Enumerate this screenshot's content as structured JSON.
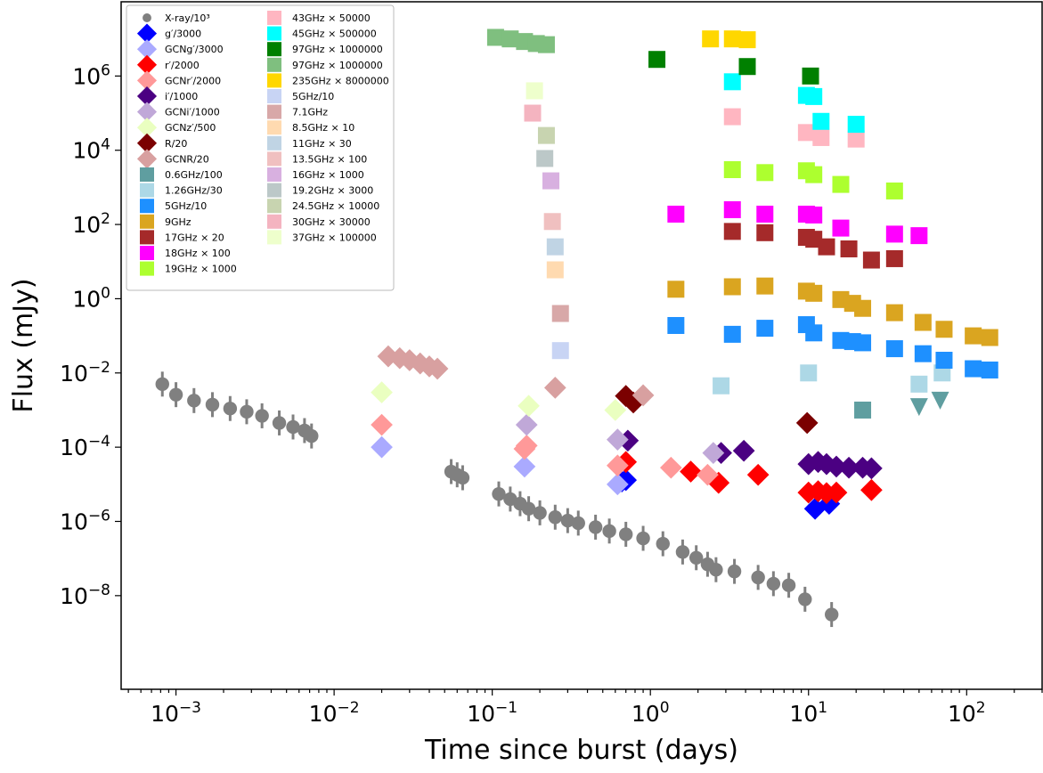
{
  "chart_data": {
    "type": "scatter",
    "xlabel": "Time since burst (days)",
    "ylabel": "Flux (mJy)",
    "xscale": "log",
    "yscale": "log",
    "xlim": [
      0.00045,
      300
    ],
    "ylim": [
      3e-11,
      100000000.0
    ],
    "x_ticks": [
      {
        "value": 0.001,
        "base": "10",
        "exp": "−3"
      },
      {
        "value": 0.01,
        "base": "10",
        "exp": "−2"
      },
      {
        "value": 0.1,
        "base": "10",
        "exp": "−1"
      },
      {
        "value": 1,
        "base": "10",
        "exp": "0"
      },
      {
        "value": 10,
        "base": "10",
        "exp": "1"
      },
      {
        "value": 100,
        "base": "10",
        "exp": "2"
      }
    ],
    "y_ticks": [
      {
        "value": 1e-08,
        "base": "10",
        "exp": "−8"
      },
      {
        "value": 1e-06,
        "base": "10",
        "exp": "−6"
      },
      {
        "value": 0.0001,
        "base": "10",
        "exp": "−4"
      },
      {
        "value": 0.01,
        "base": "10",
        "exp": "−2"
      },
      {
        "value": 1,
        "base": "10",
        "exp": "0"
      },
      {
        "value": 100,
        "base": "10",
        "exp": "2"
      },
      {
        "value": 10000,
        "base": "10",
        "exp": "4"
      },
      {
        "value": 1000000,
        "base": "10",
        "exp": "6"
      }
    ],
    "legend_position": "top-left",
    "series": [
      {
        "name": "X-ray/10³",
        "color": "#808080",
        "marker": "circle",
        "points": [
          [
            0.00082,
            0.005
          ],
          [
            0.001,
            0.0026
          ],
          [
            0.0013,
            0.0018
          ],
          [
            0.0017,
            0.0014
          ],
          [
            0.0022,
            0.0011
          ],
          [
            0.0028,
            0.0009
          ],
          [
            0.0035,
            0.0007
          ],
          [
            0.0045,
            0.00045
          ],
          [
            0.0055,
            0.00035
          ],
          [
            0.0065,
            0.00028
          ],
          [
            0.0072,
            0.0002
          ],
          [
            0.055,
            2.2e-05
          ],
          [
            0.06,
            1.8e-05
          ],
          [
            0.065,
            1.5e-05
          ],
          [
            0.11,
            5.5e-06
          ],
          [
            0.13,
            4e-06
          ],
          [
            0.15,
            3e-06
          ],
          [
            0.17,
            2.2e-06
          ],
          [
            0.2,
            1.7e-06
          ],
          [
            0.25,
            1.3e-06
          ],
          [
            0.3,
            1.05e-06
          ],
          [
            0.35,
            9e-07
          ],
          [
            0.45,
            7e-07
          ],
          [
            0.55,
            5.5e-07
          ],
          [
            0.7,
            4.5e-07
          ],
          [
            0.9,
            3.5e-07
          ],
          [
            1.2,
            2.5e-07
          ],
          [
            1.6,
            1.5e-07
          ],
          [
            1.95,
            1.05e-07
          ],
          [
            2.3,
            7e-08
          ],
          [
            2.6,
            5e-08
          ],
          [
            3.4,
            4.5e-08
          ],
          [
            4.8,
            3.1e-08
          ],
          [
            6.0,
            2.1e-08
          ],
          [
            7.5,
            1.9e-08
          ],
          [
            9.5,
            8e-09
          ],
          [
            14,
            3.1e-09
          ]
        ]
      },
      {
        "name": "g′/3000",
        "color": "#0000ff",
        "marker": "diamond",
        "points": [
          [
            0.7,
            1.3e-05
          ],
          [
            0.66,
            1.2e-05
          ],
          [
            11,
            2.2e-06
          ],
          [
            13.5,
            3e-06
          ]
        ]
      },
      {
        "name": "GCNg′/3000",
        "color": "#aaaaff",
        "marker": "diamond",
        "points": [
          [
            0.02,
            0.0001
          ],
          [
            0.16,
            3e-05
          ],
          [
            0.62,
            1e-05
          ]
        ]
      },
      {
        "name": "r′/2000",
        "color": "#ff0000",
        "marker": "diamond",
        "points": [
          [
            0.7,
            4e-05
          ],
          [
            1.8,
            2.2e-05
          ],
          [
            2.7,
            1.1e-05
          ],
          [
            4.8,
            1.8e-05
          ],
          [
            10,
            6e-06
          ],
          [
            11.5,
            6.5e-06
          ],
          [
            13,
            5.8e-06
          ],
          [
            15,
            6e-06
          ],
          [
            25,
            7e-06
          ]
        ]
      },
      {
        "name": "GCNr′/2000",
        "color": "#ff9999",
        "marker": "diamond",
        "points": [
          [
            0.02,
            0.0004
          ],
          [
            0.16,
            9e-05
          ],
          [
            0.165,
            0.00011
          ],
          [
            0.62,
            3.2e-05
          ],
          [
            1.35,
            2.8e-05
          ],
          [
            2.3,
            1.8e-05
          ]
        ]
      },
      {
        "name": "i′/1000",
        "color": "#4b0082",
        "marker": "diamond",
        "points": [
          [
            0.72,
            0.00015
          ],
          [
            2.8,
            7e-05
          ],
          [
            3.9,
            8e-05
          ],
          [
            10,
            3.5e-05
          ],
          [
            11.5,
            4e-05
          ],
          [
            13,
            3.5e-05
          ],
          [
            15,
            3e-05
          ],
          [
            18,
            2.8e-05
          ],
          [
            22,
            2.8e-05
          ],
          [
            25,
            2.7e-05
          ]
        ]
      },
      {
        "name": "GCNi′/1000",
        "color": "#c0a8d8",
        "marker": "diamond",
        "points": [
          [
            0.165,
            0.0004
          ],
          [
            0.62,
            0.00016
          ],
          [
            2.5,
            7e-05
          ]
        ]
      },
      {
        "name": "GCNz′/500",
        "color": "#eaffc0",
        "marker": "diamond",
        "points": [
          [
            0.02,
            0.003
          ],
          [
            0.17,
            0.0013
          ],
          [
            0.6,
            0.001
          ]
        ]
      },
      {
        "name": "R/20",
        "color": "#7b0000",
        "marker": "diamond",
        "points": [
          [
            0.7,
            0.0024
          ],
          [
            0.78,
            0.0016
          ],
          [
            9.8,
            0.00045
          ]
        ]
      },
      {
        "name": "GCNR/20",
        "color": "#d8a0a0",
        "marker": "diamond",
        "points": [
          [
            0.022,
            0.028
          ],
          [
            0.026,
            0.025
          ],
          [
            0.03,
            0.022
          ],
          [
            0.035,
            0.018
          ],
          [
            0.04,
            0.015
          ],
          [
            0.045,
            0.013
          ],
          [
            0.25,
            0.004
          ],
          [
            0.9,
            0.0025
          ]
        ]
      },
      {
        "name": "0.6GHz/100",
        "color": "#5f9ea0",
        "marker": "square",
        "points": [
          [
            22,
            0.001
          ]
        ]
      },
      {
        "name": "1.26GHz/30",
        "color": "#add8e6",
        "marker": "square",
        "points": [
          [
            2.8,
            0.0045
          ],
          [
            10,
            0.01
          ],
          [
            50,
            0.005
          ],
          [
            70,
            0.01
          ]
        ]
      },
      {
        "name": "5GHz/10",
        "color": "#1e90ff",
        "marker": "square",
        "points": [
          [
            1.45,
            0.19
          ],
          [
            3.3,
            0.11
          ],
          [
            5.3,
            0.16
          ],
          [
            9.7,
            0.2
          ],
          [
            10.8,
            0.12
          ],
          [
            16,
            0.075
          ],
          [
            19,
            0.07
          ],
          [
            22,
            0.065
          ],
          [
            35,
            0.045
          ],
          [
            53,
            0.033
          ],
          [
            72,
            0.022
          ],
          [
            110,
            0.013
          ],
          [
            140,
            0.012
          ]
        ]
      },
      {
        "name": "9GHz",
        "color": "#daa520",
        "marker": "square",
        "points": [
          [
            1.45,
            1.8
          ],
          [
            3.3,
            2.1
          ],
          [
            5.3,
            2.2
          ],
          [
            9.7,
            1.6
          ],
          [
            10.8,
            1.4
          ],
          [
            16,
            0.95
          ],
          [
            19,
            0.75
          ],
          [
            22,
            0.55
          ],
          [
            35,
            0.42
          ],
          [
            53,
            0.23
          ],
          [
            72,
            0.15
          ],
          [
            110,
            0.1
          ],
          [
            140,
            0.09
          ]
        ]
      },
      {
        "name": "17GHz × 20",
        "color": "#a52a2a",
        "marker": "square",
        "points": [
          [
            3.3,
            65
          ],
          [
            5.3,
            60
          ],
          [
            9.7,
            45
          ],
          [
            10.8,
            40
          ],
          [
            13,
            25
          ],
          [
            18,
            22
          ],
          [
            25,
            11
          ],
          [
            35,
            12
          ]
        ]
      },
      {
        "name": "18GHz × 100",
        "color": "#ff00ff",
        "marker": "square",
        "points": [
          [
            1.45,
            190
          ],
          [
            3.3,
            250
          ],
          [
            5.3,
            190
          ],
          [
            9.7,
            190
          ],
          [
            10.8,
            180
          ],
          [
            16,
            80
          ],
          [
            35,
            55
          ],
          [
            50,
            50
          ]
        ]
      },
      {
        "name": "19GHz × 1000",
        "color": "#adff2f",
        "marker": "square",
        "points": [
          [
            3.3,
            3000
          ],
          [
            5.3,
            2500
          ],
          [
            9.7,
            2800
          ],
          [
            10.8,
            2200
          ],
          [
            16,
            1200
          ],
          [
            35,
            800
          ]
        ]
      },
      {
        "name": "43GHz × 50000",
        "color": "#ffb6c1",
        "marker": "square",
        "points": [
          [
            3.3,
            80000
          ],
          [
            9.7,
            30000
          ],
          [
            12,
            22000
          ],
          [
            20,
            20000
          ]
        ]
      },
      {
        "name": "45GHz × 500000",
        "color": "#00ffff",
        "marker": "square",
        "points": [
          [
            3.3,
            700000
          ],
          [
            9.7,
            300000
          ],
          [
            10.8,
            280000
          ],
          [
            12,
            60000
          ],
          [
            20,
            50000
          ]
        ]
      },
      {
        "name": "97GHz × 1000000",
        "color": "#008000",
        "marker": "square",
        "points": [
          [
            1.1,
            2800000
          ],
          [
            4.1,
            1800000
          ],
          [
            10.3,
            1000000
          ]
        ]
      },
      {
        "name": "97GHz × 1000000",
        "color": "#7fbf7f",
        "marker": "square",
        "points": [
          [
            0.105,
            11000000
          ],
          [
            0.13,
            10000000
          ],
          [
            0.16,
            8500000
          ],
          [
            0.19,
            7500000
          ],
          [
            0.22,
            7000000
          ]
        ]
      },
      {
        "name": "235GHz × 8000000",
        "color": "#ffd700",
        "marker": "square",
        "points": [
          [
            2.4,
            10000000
          ],
          [
            3.3,
            10000000
          ],
          [
            4.1,
            9500000
          ]
        ]
      },
      {
        "name": "5GHz/10",
        "color": "#c8d4f4",
        "marker": "square",
        "points": [
          [
            0.27,
            0.04
          ]
        ]
      },
      {
        "name": "7.1GHz",
        "color": "#d8a8a8",
        "marker": "square",
        "points": [
          [
            0.27,
            0.4
          ]
        ]
      },
      {
        "name": "8.5GHz × 10",
        "color": "#ffdab0",
        "marker": "square",
        "points": [
          [
            0.25,
            6
          ]
        ]
      },
      {
        "name": "11GHz × 30",
        "color": "#c0d4e4",
        "marker": "square",
        "points": [
          [
            0.25,
            25
          ]
        ]
      },
      {
        "name": "13.5GHz × 100",
        "color": "#f0c0c0",
        "marker": "square",
        "points": [
          [
            0.24,
            120
          ]
        ]
      },
      {
        "name": "16GHz × 1000",
        "color": "#d8b0e0",
        "marker": "square",
        "points": [
          [
            0.235,
            1500
          ]
        ]
      },
      {
        "name": "19.2GHz × 3000",
        "color": "#bcc8c8",
        "marker": "square",
        "points": [
          [
            0.215,
            6000
          ]
        ]
      },
      {
        "name": "24.5GHz × 10000",
        "color": "#c8d4b0",
        "marker": "square",
        "points": [
          [
            0.22,
            25000
          ]
        ]
      },
      {
        "name": "30GHz × 30000",
        "color": "#f4b4c0",
        "marker": "square",
        "points": [
          [
            0.18,
            100000
          ]
        ]
      },
      {
        "name": "37GHz × 100000",
        "color": "#eeffcc",
        "marker": "square",
        "points": [
          [
            0.185,
            400000
          ]
        ]
      }
    ],
    "upper_limits": {
      "color": "#5f9ea0",
      "marker": "triangle-down",
      "points": [
        [
          50,
          0.0012
        ],
        [
          68,
          0.0018
        ]
      ]
    }
  }
}
